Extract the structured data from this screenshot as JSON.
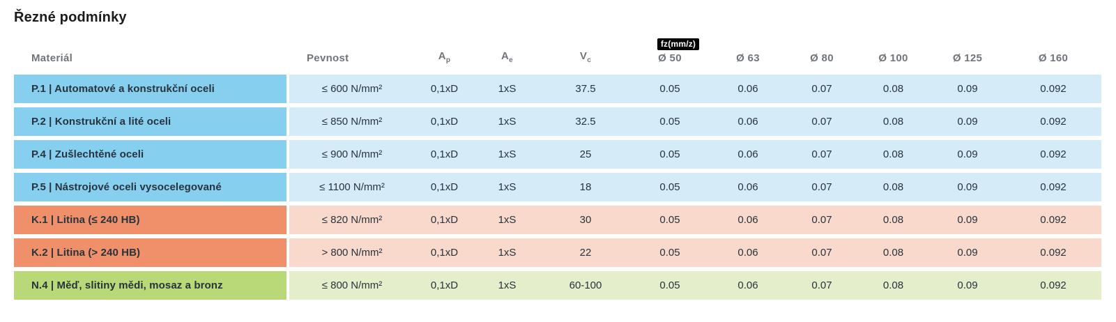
{
  "title": "Řezné podmínky",
  "table": {
    "headers": {
      "material": "Materiál",
      "pevnost": "Pevnost",
      "ap": {
        "symbol": "A",
        "sub": "p"
      },
      "ae": {
        "symbol": "A",
        "sub": "e"
      },
      "vc": {
        "symbol": "V",
        "sub": "c"
      },
      "fz_badge": "fz(mm/z)",
      "diameters": [
        "Ø 50",
        "Ø 63",
        "Ø 80",
        "Ø 100",
        "Ø 125",
        "Ø 160"
      ]
    },
    "rows": [
      {
        "group": "steel",
        "material": "P.1 | Automatové a konstrukční oceli",
        "pevnost": "≤ 600 N/mm²",
        "ap": "0,1xD",
        "ae": "1xS",
        "vc": "37.5",
        "fz": [
          "0.05",
          "0.06",
          "0.07",
          "0.08",
          "0.09",
          "0.092"
        ]
      },
      {
        "group": "steel",
        "material": "P.2 | Konstrukční a lité oceli",
        "pevnost": "≤ 850 N/mm²",
        "ap": "0,1xD",
        "ae": "1xS",
        "vc": "32.5",
        "fz": [
          "0.05",
          "0.06",
          "0.07",
          "0.08",
          "0.09",
          "0.092"
        ]
      },
      {
        "group": "steel",
        "material": "P.4 | Zušlechtěné oceli",
        "pevnost": "≤ 900 N/mm²",
        "ap": "0,1xD",
        "ae": "1xS",
        "vc": "25",
        "fz": [
          "0.05",
          "0.06",
          "0.07",
          "0.08",
          "0.09",
          "0.092"
        ]
      },
      {
        "group": "steel",
        "material": "P.5 | Nástrojové oceli vysocelegované",
        "pevnost": "≤ 1100 N/mm²",
        "ap": "0,1xD",
        "ae": "1xS",
        "vc": "18",
        "fz": [
          "0.05",
          "0.06",
          "0.07",
          "0.08",
          "0.09",
          "0.092"
        ]
      },
      {
        "group": "cast",
        "material": "K.1 | Litina (≤ 240 HB)",
        "pevnost": "≤ 820 N/mm²",
        "ap": "0,1xD",
        "ae": "1xS",
        "vc": "30",
        "fz": [
          "0.05",
          "0.06",
          "0.07",
          "0.08",
          "0.09",
          "0.092"
        ]
      },
      {
        "group": "cast",
        "material": "K.2 | Litina (> 240 HB)",
        "pevnost": "> 800 N/mm²",
        "ap": "0,1xD",
        "ae": "1xS",
        "vc": "22",
        "fz": [
          "0.05",
          "0.06",
          "0.07",
          "0.08",
          "0.09",
          "0.092"
        ]
      },
      {
        "group": "nonferrous",
        "material": "N.4 | Měď, slitiny mědi, mosaz a bronz",
        "pevnost": "≤ 800 N/mm²",
        "ap": "0,1xD",
        "ae": "1xS",
        "vc": "60-100",
        "fz": [
          "0.05",
          "0.06",
          "0.07",
          "0.08",
          "0.09",
          "0.092"
        ]
      }
    ],
    "colors": {
      "steel_dark": "#87CFEE",
      "steel_light": "#D5EBF7",
      "cast_dark": "#F0906B",
      "cast_light": "#F9D9CB",
      "nonferrous_dark": "#B9D878",
      "nonferrous_light": "#E4EECB",
      "header_text": "#70757B",
      "title_text": "#1B1B1D",
      "cell_text": "#27333D",
      "badge_bg": "#000000",
      "badge_text": "#FFFFFF"
    }
  },
  "chart_data": {
    "type": "table",
    "title": "Řezné podmínky",
    "columns": [
      "Materiál",
      "Pevnost",
      "Ap",
      "Ae",
      "Vc",
      "fz(mm/z) Ø 50",
      "Ø 63",
      "Ø 80",
      "Ø 100",
      "Ø 125",
      "Ø 160"
    ],
    "rows": [
      [
        "P.1 | Automatové a konstrukční oceli",
        "≤ 600 N/mm²",
        "0,1xD",
        "1xS",
        "37.5",
        "0.05",
        "0.06",
        "0.07",
        "0.08",
        "0.09",
        "0.092"
      ],
      [
        "P.2 | Konstrukční a lité oceli",
        "≤ 850 N/mm²",
        "0,1xD",
        "1xS",
        "32.5",
        "0.05",
        "0.06",
        "0.07",
        "0.08",
        "0.09",
        "0.092"
      ],
      [
        "P.4 | Zušlechtěné oceli",
        "≤ 900 N/mm²",
        "0,1xD",
        "1xS",
        "25",
        "0.05",
        "0.06",
        "0.07",
        "0.08",
        "0.09",
        "0.092"
      ],
      [
        "P.5 | Nástrojové oceli vysocelegované",
        "≤ 1100 N/mm²",
        "0,1xD",
        "1xS",
        "18",
        "0.05",
        "0.06",
        "0.07",
        "0.08",
        "0.09",
        "0.092"
      ],
      [
        "K.1 | Litina (≤ 240 HB)",
        "≤ 820 N/mm²",
        "0,1xD",
        "1xS",
        "30",
        "0.05",
        "0.06",
        "0.07",
        "0.08",
        "0.09",
        "0.092"
      ],
      [
        "K.2 | Litina (> 240 HB)",
        "> 800 N/mm²",
        "0,1xD",
        "1xS",
        "22",
        "0.05",
        "0.06",
        "0.07",
        "0.08",
        "0.09",
        "0.092"
      ],
      [
        "N.4 | Měď, slitiny mědi, mosaz a bronz",
        "≤ 800 N/mm²",
        "0,1xD",
        "1xS",
        "60-100",
        "0.05",
        "0.06",
        "0.07",
        "0.08",
        "0.09",
        "0.092"
      ]
    ]
  }
}
